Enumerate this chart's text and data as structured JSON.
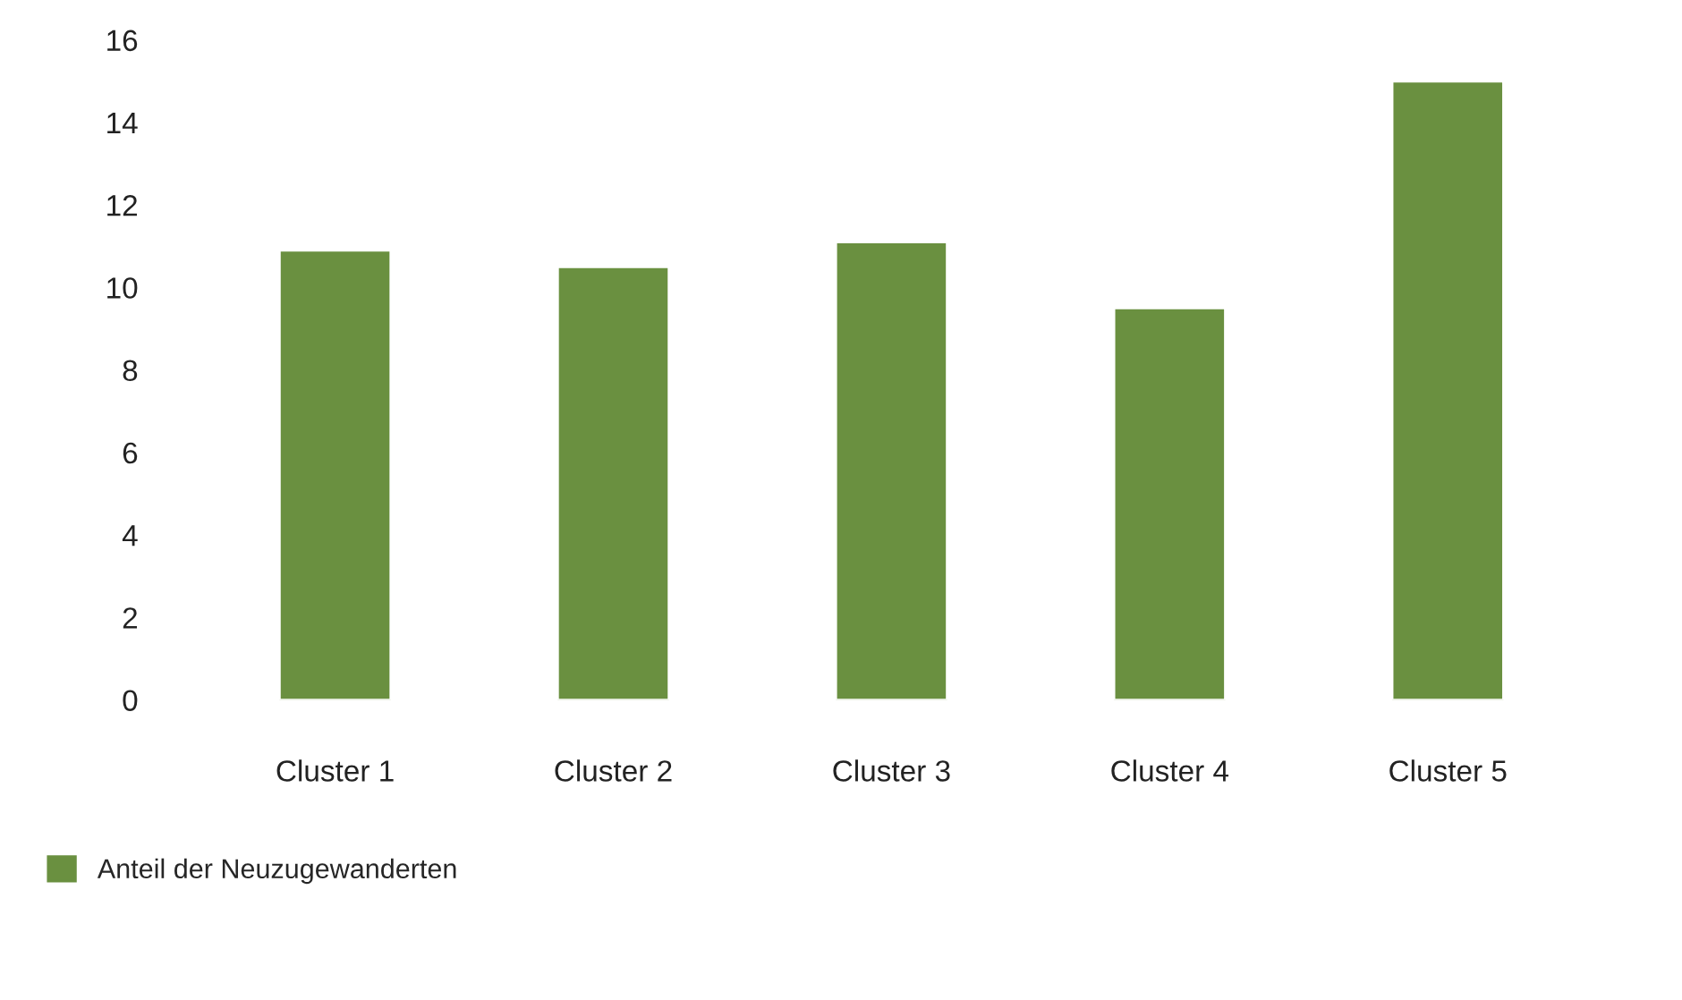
{
  "chart_data": {
    "type": "bar",
    "categories": [
      "Cluster 1",
      "Cluster 2",
      "Cluster 3",
      "Cluster 4",
      "Cluster 5"
    ],
    "series": [
      {
        "name": "Anteil der Neuzugewanderten",
        "color": "#6a9040",
        "values": [
          10.9,
          10.5,
          11.1,
          9.5,
          15.0
        ]
      }
    ],
    "ylim": [
      0,
      16
    ],
    "yticks": [
      0,
      2,
      4,
      6,
      8,
      10,
      12,
      14,
      16
    ],
    "grid": false,
    "legend": "bottom left"
  }
}
